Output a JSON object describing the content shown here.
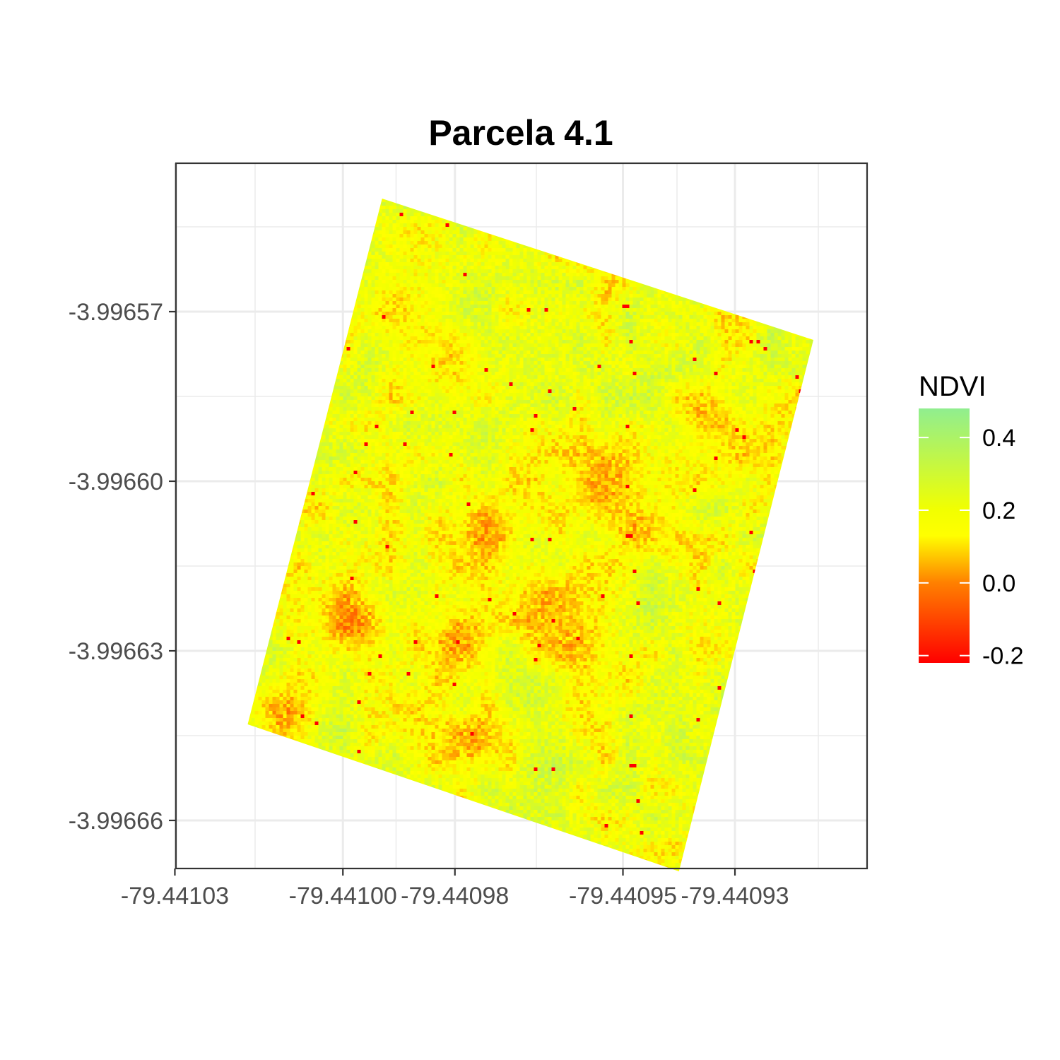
{
  "chart_data": {
    "type": "heatmap",
    "title": "Parcela 4.1",
    "xlabel": "",
    "ylabel": "",
    "x_ticks": [
      {
        "value": -79.44103,
        "label": "-79.44103"
      },
      {
        "value": -79.441,
        "label": "-79.44100"
      },
      {
        "value": -79.44098,
        "label": "-79.44098"
      },
      {
        "value": -79.44095,
        "label": "-79.44095"
      },
      {
        "value": -79.44093,
        "label": "-79.44093"
      }
    ],
    "y_ticks": [
      {
        "value": -3.99657,
        "label": "-3.99657"
      },
      {
        "value": -3.9966,
        "label": "-3.99660"
      },
      {
        "value": -3.99663,
        "label": "-3.99663"
      },
      {
        "value": -3.99666,
        "label": "-3.99666"
      }
    ],
    "xlim": [
      -79.441031,
      -79.440921
    ],
    "ylim": [
      -3.996669,
      -3.996546
    ],
    "grid": true,
    "raster_extent": {
      "corners": [
        {
          "x": -79.440993,
          "y": -3.99655,
          "label": "north"
        },
        {
          "x": -79.440916,
          "y": -3.996575,
          "label": "east"
        },
        {
          "x": -79.44094,
          "y": -3.996669,
          "label": "south"
        },
        {
          "x": -79.441017,
          "y": -3.996643,
          "label": "west"
        }
      ]
    },
    "value_range": [
      -0.22,
      0.48
    ],
    "typical_ndvi": 0.2,
    "low_value_zones": [
      {
        "x": -79.440999,
        "y": -3.996625,
        "level": -0.05
      },
      {
        "x": -79.44098,
        "y": -3.996629,
        "level": -0.03
      },
      {
        "x": -79.440975,
        "y": -3.996609,
        "level": 0.0
      },
      {
        "x": -79.440963,
        "y": -3.996621,
        "level": 0.02
      },
      {
        "x": -79.440954,
        "y": -3.9966,
        "level": 0.0
      },
      {
        "x": -79.440947,
        "y": -3.996608,
        "level": 0.02
      },
      {
        "x": -79.440978,
        "y": -3.996646,
        "level": 0.0
      },
      {
        "x": -79.440935,
        "y": -3.996588,
        "level": 0.03
      },
      {
        "x": -79.440929,
        "y": -3.996594,
        "level": 0.05
      },
      {
        "x": -79.44101,
        "y": -3.996641,
        "level": 0.0
      },
      {
        "x": -79.44096,
        "y": -3.996629,
        "level": 0.05
      },
      {
        "x": -79.440981,
        "y": -3.99658,
        "level": 0.07
      },
      {
        "x": -79.440989,
        "y": -3.99657,
        "level": 0.08
      }
    ],
    "legend": {
      "title": "NDVI",
      "position": "right",
      "breaks": [
        {
          "value": 0.4,
          "label": "0.4"
        },
        {
          "value": 0.2,
          "label": "0.2"
        },
        {
          "value": 0.0,
          "label": "0.0"
        },
        {
          "value": -0.2,
          "label": "-0.2"
        }
      ],
      "colors": [
        {
          "value": -0.22,
          "color": "#ff0000"
        },
        {
          "value": 0.0,
          "color": "#ff8000"
        },
        {
          "value": 0.13,
          "color": "#ffff00"
        },
        {
          "value": 0.2,
          "color": "#f2ff00"
        },
        {
          "value": 0.48,
          "color": "#90ee90"
        }
      ]
    }
  },
  "colors": {
    "panel_border": "#333333",
    "grid": "#ebebeb",
    "tick_text": "#4d4d4d",
    "title_text": "#000000"
  }
}
